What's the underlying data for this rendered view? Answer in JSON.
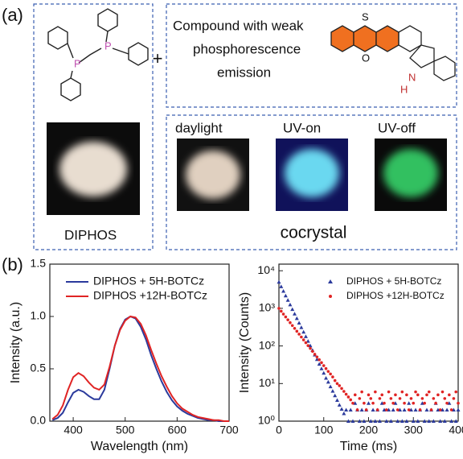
{
  "panel_a": {
    "label": "(a)",
    "plus": "+",
    "diphos": {
      "atom_1": "P",
      "atom_2": "P",
      "name": "DIPHOS"
    },
    "compound": {
      "lines": [
        "Compound with weak",
        "phosphorescence",
        "emission"
      ],
      "atoms": [
        "S",
        "O",
        "N",
        "H"
      ]
    },
    "cocrystal": {
      "states": [
        "daylight",
        "UV-on",
        "UV-off"
      ],
      "name": "cocrystal"
    }
  },
  "panel_b": {
    "label": "(b)"
  },
  "chart_data": [
    {
      "type": "line",
      "xlabel": "Wavelength (nm)",
      "ylabel": "Intensity (a.u.)",
      "xlim": [
        355,
        700
      ],
      "xticks": [
        400,
        500,
        600,
        700
      ],
      "ylim": [
        0,
        1.5
      ],
      "yticks": [
        {
          "value": 0,
          "label": "0.0"
        },
        {
          "value": 0.5,
          "label": "0.5"
        },
        {
          "value": 1,
          "label": "1.0"
        },
        {
          "value": 1.5,
          "label": "1.5"
        }
      ],
      "legend": "upper center",
      "x": [
        360,
        370,
        380,
        390,
        400,
        410,
        420,
        430,
        440,
        450,
        460,
        470,
        480,
        490,
        500,
        510,
        520,
        530,
        540,
        550,
        560,
        570,
        580,
        590,
        600,
        610,
        620,
        630,
        640,
        650,
        660,
        670,
        680,
        690,
        700
      ],
      "series": [
        {
          "name": "DIPHOS + 5H-BOTCz",
          "color": "#2b3a9c",
          "values": [
            0.01,
            0.03,
            0.08,
            0.18,
            0.27,
            0.3,
            0.28,
            0.24,
            0.21,
            0.21,
            0.3,
            0.5,
            0.72,
            0.88,
            0.97,
            1.0,
            0.98,
            0.9,
            0.78,
            0.63,
            0.5,
            0.38,
            0.28,
            0.2,
            0.14,
            0.1,
            0.07,
            0.05,
            0.03,
            0.02,
            0.01,
            0.01,
            0,
            0,
            0
          ]
        },
        {
          "name": "DIPHOS +12H-BOTCz",
          "color": "#e02424",
          "values": [
            0.02,
            0.06,
            0.15,
            0.3,
            0.42,
            0.46,
            0.43,
            0.37,
            0.32,
            0.3,
            0.35,
            0.52,
            0.72,
            0.87,
            0.96,
            1.0,
            0.99,
            0.93,
            0.82,
            0.68,
            0.55,
            0.43,
            0.33,
            0.24,
            0.17,
            0.12,
            0.09,
            0.06,
            0.04,
            0.03,
            0.02,
            0.01,
            0.01,
            0,
            0
          ]
        }
      ]
    },
    {
      "type": "scatter",
      "xlabel": "Time (ms)",
      "ylabel": "Intensity (Counts)",
      "log_y": true,
      "xlim": [
        0,
        400
      ],
      "xticks": [
        0,
        100,
        200,
        300,
        400
      ],
      "ylim": [
        1,
        15000
      ],
      "yticks": [
        {
          "value": 1,
          "label": "10⁰"
        },
        {
          "value": 10,
          "label": "10¹"
        },
        {
          "value": 100,
          "label": "10²"
        },
        {
          "value": 1000,
          "label": "10³"
        },
        {
          "value": 10000,
          "label": "10⁴"
        }
      ],
      "legend": "upper right",
      "x": [
        0,
        5,
        10,
        15,
        20,
        25,
        30,
        35,
        40,
        45,
        50,
        55,
        60,
        65,
        70,
        75,
        80,
        85,
        90,
        95,
        100,
        105,
        110,
        115,
        120,
        125,
        130,
        135,
        140,
        145,
        150,
        155,
        160,
        165,
        170,
        175,
        180,
        185,
        190,
        195,
        200,
        205,
        210,
        215,
        220,
        225,
        230,
        235,
        240,
        245,
        250,
        255,
        260,
        265,
        270,
        275,
        280,
        285,
        290,
        295,
        300,
        305,
        310,
        315,
        320,
        325,
        330,
        335,
        340,
        345,
        350,
        355,
        360,
        365,
        370,
        375,
        380,
        385,
        390,
        395,
        400
      ],
      "series": [
        {
          "name": "DIPHOS + 5H-BOTCz",
          "color": "#2b3a9c",
          "marker": "triangle",
          "values": [
            5000,
            3800,
            2870,
            2170,
            1650,
            1250,
            940,
            715,
            540,
            410,
            310,
            235,
            178,
            134,
            102,
            77,
            58,
            44,
            33,
            25,
            19,
            14,
            11,
            8.3,
            6.3,
            4.8,
            3.6,
            2.7,
            2.1,
            1.6,
            2,
            1,
            2,
            1,
            3,
            2,
            1,
            2,
            1,
            2,
            3,
            1,
            2,
            1,
            2,
            1,
            3,
            2,
            1,
            2,
            1,
            2,
            3,
            1,
            2,
            1,
            2,
            1,
            3,
            2,
            1,
            2,
            1,
            2,
            3,
            1,
            2,
            1,
            2,
            1,
            3,
            2,
            1,
            2,
            1,
            2,
            3,
            1,
            2,
            1,
            2
          ]
        },
        {
          "name": "DIPHOS +12H-BOTCz",
          "color": "#e02424",
          "marker": "circle",
          "values": [
            1000,
            840,
            704,
            591,
            496,
            416,
            349,
            293,
            246,
            206,
            173,
            145,
            122,
            102,
            86,
            72,
            60,
            51,
            43,
            36,
            30,
            25,
            21,
            18,
            15,
            12,
            10,
            8.8,
            7.4,
            6.2,
            5.2,
            4.4,
            3.7,
            3,
            5,
            2,
            4,
            6,
            3,
            2,
            5,
            4,
            3,
            6,
            2,
            4,
            5,
            3,
            2,
            6,
            4,
            3,
            5,
            2,
            4,
            6,
            3,
            5,
            2,
            4,
            3,
            6,
            5,
            2,
            4,
            3,
            5,
            6,
            2,
            4,
            3,
            5,
            2,
            6,
            4,
            3,
            5,
            2,
            4,
            6,
            3
          ]
        }
      ]
    }
  ]
}
